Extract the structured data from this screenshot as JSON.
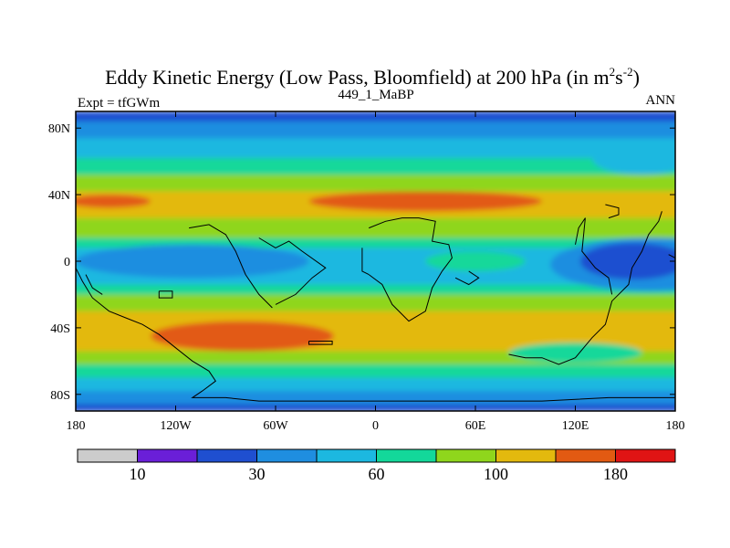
{
  "chart_data": {
    "type": "heatmap",
    "title_main": "Eddy Kinetic Energy (Low Pass, Bloomfield) at 200 hPa (in m",
    "title_sup1": "2",
    "title_mid": "s",
    "title_sup2": "-2",
    "title_close": ")",
    "subtitle_left": "Expt = tfGWm",
    "subtitle_center": "449_1_MaBP",
    "subtitle_right": "ANN",
    "x_range": [
      -180,
      180
    ],
    "y_range": [
      -90,
      90
    ],
    "x_ticks": [
      {
        "value": -180,
        "label": "180"
      },
      {
        "value": -120,
        "label": "120W"
      },
      {
        "value": -60,
        "label": "60W"
      },
      {
        "value": 0,
        "label": "0"
      },
      {
        "value": 60,
        "label": "60E"
      },
      {
        "value": 120,
        "label": "120E"
      },
      {
        "value": 180,
        "label": "180"
      }
    ],
    "y_ticks": [
      {
        "value": 80,
        "label": "80N"
      },
      {
        "value": 40,
        "label": "40N"
      },
      {
        "value": 0,
        "label": "0"
      },
      {
        "value": -40,
        "label": "40S"
      },
      {
        "value": -80,
        "label": "80S"
      }
    ],
    "colorbar": {
      "colors": [
        "#cccccc",
        "#6a1fd8",
        "#1f4fd0",
        "#1f8ee0",
        "#1cb8e0",
        "#13d89a",
        "#8fd61c",
        "#e3b90e",
        "#e25a12",
        "#e01414"
      ],
      "label_at_boundary": [
        {
          "boundary": 1,
          "label": "10"
        },
        {
          "boundary": 3,
          "label": "30"
        },
        {
          "boundary": 5,
          "label": "60"
        },
        {
          "boundary": 7,
          "label": "100"
        },
        {
          "boundary": 9,
          "label": "180"
        }
      ]
    },
    "bands": [
      {
        "lat_top": 90,
        "lat_bottom": 84,
        "level": 2
      },
      {
        "lat_top": 84,
        "lat_bottom": 74,
        "level": 3
      },
      {
        "lat_top": 74,
        "lat_bottom": 62,
        "level": 4
      },
      {
        "lat_top": 62,
        "lat_bottom": 52,
        "level": 5
      },
      {
        "lat_top": 52,
        "lat_bottom": 42,
        "level": 6
      },
      {
        "lat_top": 42,
        "lat_bottom": 26,
        "level": 7
      },
      {
        "lat_top": 26,
        "lat_bottom": 14,
        "level": 6
      },
      {
        "lat_top": 14,
        "lat_bottom": 8,
        "level": 5
      },
      {
        "lat_top": 8,
        "lat_bottom": -14,
        "level": 4
      },
      {
        "lat_top": -14,
        "lat_bottom": -20,
        "level": 5
      },
      {
        "lat_top": -20,
        "lat_bottom": -30,
        "level": 6
      },
      {
        "lat_top": -30,
        "lat_bottom": -54,
        "level": 7
      },
      {
        "lat_top": -54,
        "lat_bottom": -62,
        "level": 6
      },
      {
        "lat_top": -62,
        "lat_bottom": -70,
        "level": 5
      },
      {
        "lat_top": -70,
        "lat_bottom": -78,
        "level": 4
      },
      {
        "lat_top": -78,
        "lat_bottom": -86,
        "level": 3
      },
      {
        "lat_top": -86,
        "lat_bottom": -90,
        "level": 2
      }
    ],
    "blobs": [
      {
        "lon": 30,
        "lat": 36,
        "rlon": 70,
        "rlat": 6,
        "level": 8
      },
      {
        "lon": -160,
        "lat": 36,
        "rlon": 25,
        "rlat": 4,
        "level": 8
      },
      {
        "lon": -80,
        "lat": -45,
        "rlon": 55,
        "rlat": 9,
        "level": 8
      },
      {
        "lon": -110,
        "lat": 0,
        "rlon": 70,
        "rlat": 10,
        "level": 3
      },
      {
        "lon": 165,
        "lat": -2,
        "rlon": 60,
        "rlat": 16,
        "level": 3
      },
      {
        "lon": 155,
        "lat": 0,
        "rlon": 32,
        "rlat": 11,
        "level": 2
      },
      {
        "lon": 60,
        "lat": 0,
        "rlon": 30,
        "rlat": 6,
        "level": 5
      },
      {
        "lon": 160,
        "lat": 62,
        "rlon": 30,
        "rlat": 10,
        "level": 4
      },
      {
        "lon": 120,
        "lat": -55,
        "rlon": 40,
        "rlat": 6,
        "level": 5
      }
    ],
    "coastlines": [
      [
        [
          -180,
          -4
        ],
        [
          -176,
          -12
        ],
        [
          -170,
          -22
        ],
        [
          -160,
          -30
        ],
        [
          -150,
          -34
        ],
        [
          -140,
          -38
        ],
        [
          -130,
          -44
        ],
        [
          -120,
          -52
        ],
        [
          -110,
          -60
        ],
        [
          -100,
          -66
        ],
        [
          -96,
          -72
        ],
        [
          -104,
          -78
        ],
        [
          -110,
          -82
        ],
        [
          -90,
          -82
        ],
        [
          -70,
          -84
        ],
        [
          -50,
          -84
        ],
        [
          -20,
          -84
        ],
        [
          0,
          -84
        ],
        [
          20,
          -84
        ],
        [
          60,
          -84
        ],
        [
          100,
          -84
        ],
        [
          140,
          -82
        ],
        [
          180,
          -82
        ]
      ],
      [
        [
          -112,
          20
        ],
        [
          -100,
          22
        ],
        [
          -90,
          16
        ],
        [
          -84,
          6
        ],
        [
          -78,
          -8
        ],
        [
          -70,
          -20
        ],
        [
          -62,
          -28
        ]
      ],
      [
        [
          -60,
          -26
        ],
        [
          -48,
          -20
        ],
        [
          -38,
          -10
        ],
        [
          -30,
          -4
        ],
        [
          -44,
          6
        ],
        [
          -52,
          12
        ],
        [
          -60,
          8
        ],
        [
          -70,
          14
        ]
      ],
      [
        [
          -4,
          20
        ],
        [
          6,
          24
        ],
        [
          16,
          26
        ],
        [
          26,
          26
        ],
        [
          36,
          24
        ],
        [
          34,
          12
        ],
        [
          44,
          10
        ],
        [
          46,
          2
        ],
        [
          40,
          -6
        ],
        [
          34,
          -16
        ],
        [
          30,
          -30
        ],
        [
          20,
          -36
        ],
        [
          10,
          -26
        ],
        [
          4,
          -14
        ],
        [
          -4,
          -8
        ]
      ],
      [
        [
          80,
          -56
        ],
        [
          90,
          -58
        ],
        [
          100,
          -58
        ],
        [
          110,
          -62
        ],
        [
          120,
          -58
        ],
        [
          130,
          -46
        ],
        [
          138,
          -38
        ],
        [
          142,
          -24
        ],
        [
          152,
          -14
        ],
        [
          154,
          -4
        ],
        [
          160,
          6
        ],
        [
          164,
          16
        ],
        [
          170,
          24
        ],
        [
          172,
          30
        ]
      ],
      [
        [
          120,
          10
        ],
        [
          122,
          20
        ],
        [
          126,
          26
        ],
        [
          124,
          6
        ],
        [
          132,
          -4
        ],
        [
          140,
          -10
        ],
        [
          142,
          -20
        ]
      ],
      [
        [
          138,
          34
        ],
        [
          146,
          32
        ],
        [
          146,
          28
        ],
        [
          140,
          26
        ]
      ],
      [
        [
          -8,
          8
        ],
        [
          -8,
          -6
        ],
        [
          -4,
          -8
        ]
      ],
      [
        [
          -40,
          -48
        ],
        [
          -26,
          -48
        ],
        [
          -26,
          -50
        ],
        [
          -40,
          -50
        ],
        [
          -40,
          -48
        ]
      ],
      [
        [
          -174,
          -8
        ],
        [
          -170,
          -16
        ],
        [
          -164,
          -20
        ]
      ],
      [
        [
          -130,
          -18
        ],
        [
          -122,
          -18
        ],
        [
          -122,
          -22
        ],
        [
          -130,
          -22
        ],
        [
          -130,
          -18
        ]
      ],
      [
        [
          48,
          -10
        ],
        [
          56,
          -14
        ],
        [
          62,
          -10
        ],
        [
          56,
          -6
        ]
      ],
      [
        [
          176,
          4
        ],
        [
          180,
          2
        ]
      ]
    ]
  }
}
